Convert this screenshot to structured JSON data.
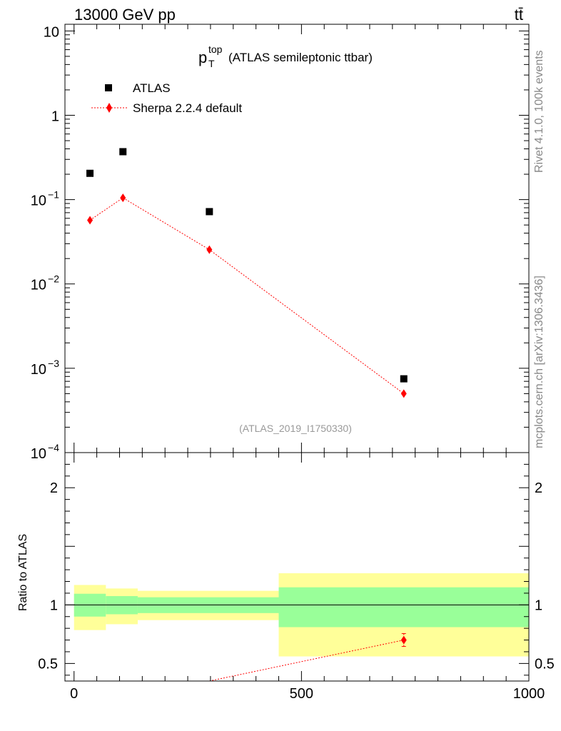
{
  "header": {
    "energy": "13000 GeV pp",
    "process": "tt̄"
  },
  "side": {
    "version": "Rivet 4.1.0,  100k events",
    "source": "mcplots.cern.ch [arXiv:1306.3436]"
  },
  "chart_data": [
    {
      "type": "scatter",
      "panel": "main",
      "title_main": "p",
      "title_sup": "top",
      "title_sub": "T",
      "title_rest": "(ATLAS semileptonic ttbar)",
      "analysis_id": "(ATLAS_2019_I1750330)",
      "yscale": "log",
      "ylim": [
        0.0001,
        12
      ],
      "xlim": [
        -20,
        1000
      ],
      "y_ticks": [
        {
          "value": 10,
          "base": "10",
          "exp": ""
        },
        {
          "value": 1,
          "base": "1",
          "exp": ""
        },
        {
          "value": 0.1,
          "base": "10",
          "exp": "−1"
        },
        {
          "value": 0.01,
          "base": "10",
          "exp": "−2"
        },
        {
          "value": 0.001,
          "base": "10",
          "exp": "−3"
        },
        {
          "value": 0.0001,
          "base": "10",
          "exp": "−4"
        }
      ],
      "legend_position": "top-left",
      "series": [
        {
          "name": "ATLAS",
          "color": "#000000",
          "marker": "square",
          "x": [
            35,
            107.5,
            297.5,
            725
          ],
          "y": [
            0.205,
            0.37,
            0.072,
            0.00075
          ]
        },
        {
          "name": "Sherpa 2.2.4 default",
          "color": "#ff0000",
          "marker": "diamond",
          "line": "dotted",
          "x": [
            35,
            107.5,
            297.5,
            725
          ],
          "y": [
            0.057,
            0.105,
            0.0255,
            0.0005
          ]
        }
      ]
    },
    {
      "type": "ratio",
      "panel": "ratio",
      "ylabel": "Ratio to ATLAS",
      "ylim": [
        0.35,
        2.3
      ],
      "xlim": [
        -20,
        1000
      ],
      "y_ticks": [
        {
          "value": 0.5,
          "label": "0.5"
        },
        {
          "value": 1,
          "label": "1"
        },
        {
          "value": 2,
          "label": "2"
        }
      ],
      "x_ticks": [
        {
          "value": 0,
          "label": "0"
        },
        {
          "value": 500,
          "label": "500"
        },
        {
          "value": 1000,
          "label": "1000"
        }
      ],
      "bands": [
        {
          "x0": 0,
          "x1": 70,
          "yellow": [
            0.785,
            1.17
          ],
          "green": [
            0.9,
            1.095
          ]
        },
        {
          "x0": 70,
          "x1": 140,
          "yellow": [
            0.835,
            1.14
          ],
          "green": [
            0.92,
            1.075
          ]
        },
        {
          "x0": 140,
          "x1": 450,
          "yellow": [
            0.87,
            1.12
          ],
          "green": [
            0.93,
            1.065
          ]
        },
        {
          "x0": 450,
          "x1": 1000,
          "yellow": [
            0.56,
            1.27
          ],
          "green": [
            0.81,
            1.15
          ]
        }
      ],
      "band_colors": {
        "yellow": "#ffff99",
        "green": "#99ff99"
      },
      "series": [
        {
          "name": "Sherpa 2.2.4 default ratio",
          "color": "#ff0000",
          "x": [
            297.5,
            725
          ],
          "y": [
            0.35,
            0.7
          ],
          "yerr": [
            0,
            0.055
          ]
        }
      ]
    }
  ]
}
